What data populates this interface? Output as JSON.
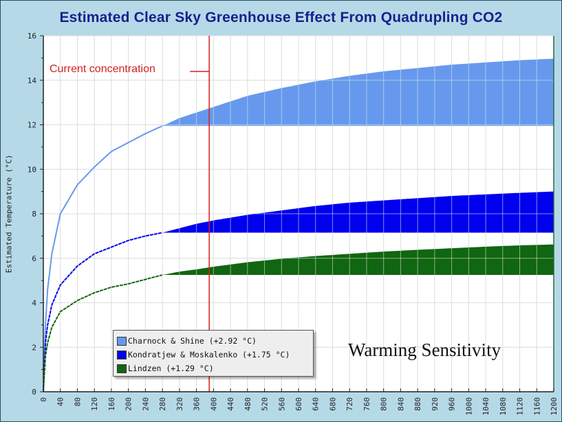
{
  "chart_data": {
    "type": "area",
    "title": "Estimated Clear Sky Greenhouse Effect From Quadrupling CO2",
    "xlabel": "",
    "ylabel": "Estimated Temperature (°C)",
    "xlim": [
      0,
      1200
    ],
    "ylim": [
      0,
      16
    ],
    "grid": true,
    "x_ticks": [
      0,
      40,
      80,
      120,
      160,
      200,
      240,
      280,
      320,
      360,
      400,
      440,
      480,
      520,
      560,
      600,
      640,
      680,
      720,
      760,
      800,
      840,
      880,
      920,
      960,
      1000,
      1040,
      1080,
      1120,
      1160,
      1200
    ],
    "y_ticks": [
      0,
      2,
      4,
      6,
      8,
      10,
      12,
      14,
      16
    ],
    "fill_start_x": 280,
    "current_concentration_x": 390,
    "annotations": {
      "current_label": "Current concentration",
      "sensitivity_label": "Warming Sensitivity"
    },
    "legend_position": "bottom-left",
    "x": [
      0,
      5,
      10,
      20,
      40,
      80,
      120,
      160,
      200,
      240,
      280,
      320,
      360,
      400,
      480,
      560,
      640,
      720,
      800,
      880,
      960,
      1040,
      1120,
      1200
    ],
    "series": [
      {
        "name": "Charnock & Shine (+2.92 °C)",
        "color": "#6699ee",
        "values": [
          0,
          3.0,
          4.6,
          6.2,
          8.0,
          9.3,
          10.1,
          10.8,
          11.2,
          11.6,
          11.95,
          12.3,
          12.55,
          12.8,
          13.3,
          13.65,
          13.95,
          14.2,
          14.4,
          14.55,
          14.7,
          14.8,
          14.9,
          14.97
        ]
      },
      {
        "name": "Kondratjew & Moskalenko (+1.75 °C)",
        "color": "#0000ee",
        "values": [
          0,
          2.2,
          3.0,
          3.9,
          4.8,
          5.65,
          6.2,
          6.5,
          6.8,
          7.0,
          7.15,
          7.35,
          7.55,
          7.7,
          7.95,
          8.15,
          8.35,
          8.5,
          8.6,
          8.7,
          8.8,
          8.87,
          8.94,
          9.0
        ]
      },
      {
        "name": "Lindzen (+1.29 °C)",
        "color": "#116611",
        "values": [
          0,
          1.6,
          2.2,
          2.9,
          3.6,
          4.1,
          4.45,
          4.7,
          4.85,
          5.05,
          5.25,
          5.4,
          5.5,
          5.62,
          5.82,
          5.98,
          6.1,
          6.2,
          6.3,
          6.38,
          6.45,
          6.52,
          6.58,
          6.62
        ]
      }
    ]
  },
  "legend": [
    {
      "label": "Charnock & Shine (+2.92 °C)",
      "color": "#6699ee"
    },
    {
      "label": "Kondratjew & Moskalenko (+1.75 °C)",
      "color": "#0000ee"
    },
    {
      "label": "Lindzen (+1.29 °C)",
      "color": "#116611"
    }
  ]
}
